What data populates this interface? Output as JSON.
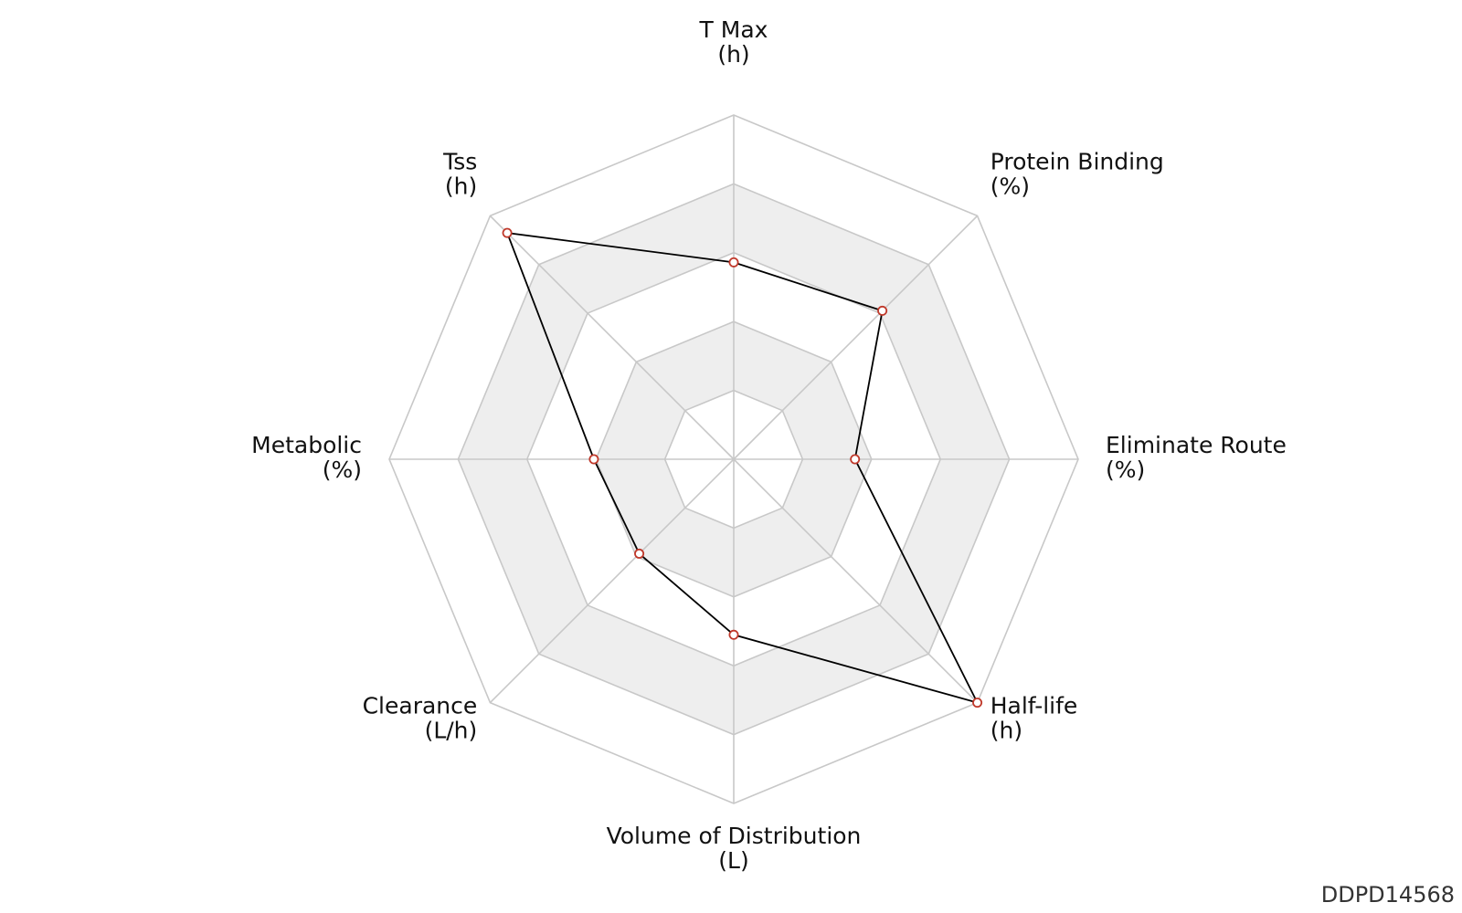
{
  "chart_data": {
    "type": "radar",
    "id_label": "DDPD14568",
    "ring_count": 5,
    "value_range": [
      0,
      5
    ],
    "axes": [
      {
        "name": "T Max",
        "unit": "(h)",
        "value": 2.86
      },
      {
        "name": "Protein Binding",
        "unit": "(%)",
        "value": 3.05
      },
      {
        "name": "Eliminate Route",
        "unit": "(%)",
        "value": 1.76
      },
      {
        "name": "Half-life",
        "unit": "(h)",
        "value": 5.0
      },
      {
        "name": "Volume of Distribution",
        "unit": "(L)",
        "value": 2.55
      },
      {
        "name": "Clearance",
        "unit": "(L/h)",
        "value": 1.94
      },
      {
        "name": "Metabolic",
        "unit": "(%)",
        "value": 2.03
      },
      {
        "name": "Tss",
        "unit": "(h)",
        "value": 4.65
      }
    ],
    "colors": {
      "grid": "#c8c8c8",
      "band_fill": "#eeeeee",
      "series_line": "#000000",
      "marker_edge": "#c0392b"
    }
  }
}
